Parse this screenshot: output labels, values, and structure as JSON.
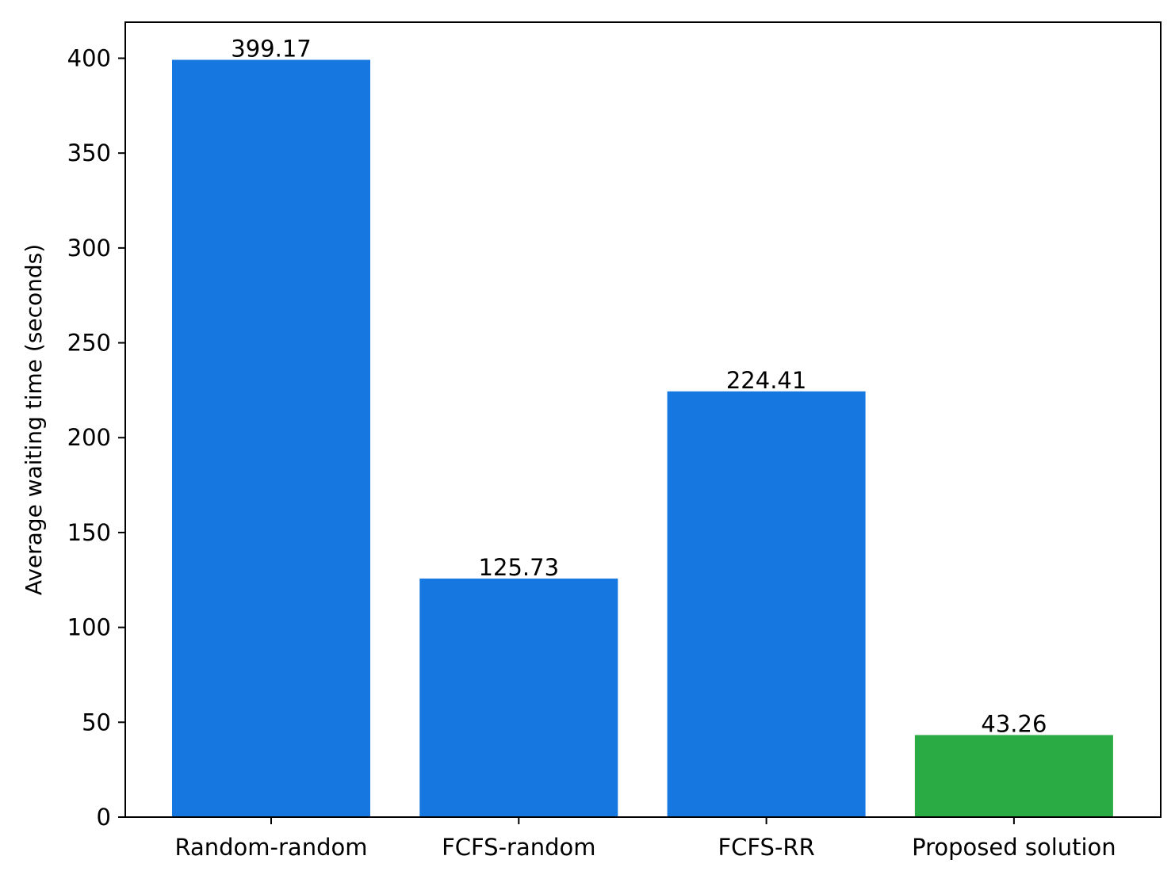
{
  "chart_data": {
    "type": "bar",
    "categories": [
      "Random-random",
      "FCFS-random",
      "FCFS-RR",
      "Proposed solution"
    ],
    "values": [
      399.17,
      125.73,
      224.41,
      43.26
    ],
    "value_labels": [
      "399.17",
      "125.73",
      "224.41",
      "43.26"
    ],
    "bar_colors": [
      "#1677e0",
      "#1677e0",
      "#1677e0",
      "#2aab43"
    ],
    "title": "",
    "xlabel": "",
    "ylabel": "Average waiting time (seconds)",
    "ylim": [
      0,
      419
    ],
    "yticks": [
      0,
      50,
      100,
      150,
      200,
      250,
      300,
      350,
      400
    ],
    "grid": false,
    "legend": "none"
  }
}
